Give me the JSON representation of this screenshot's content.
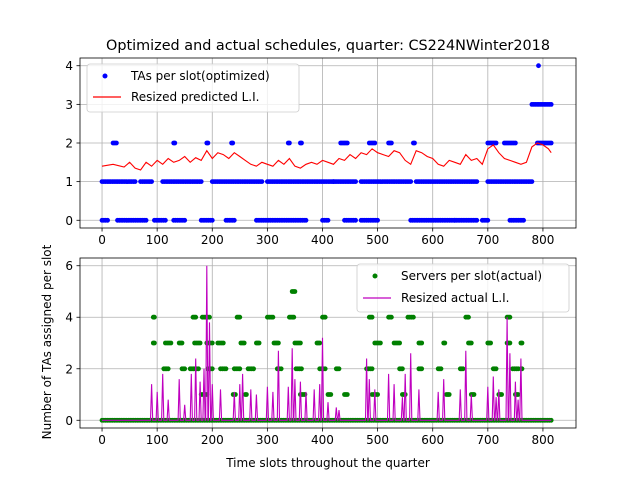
{
  "figure": {
    "title": "Optimized and actual schedules, quarter: CS224NWinter2018",
    "shared_ylabel": "Number of TAs assigned per slot",
    "shared_xlabel": "Time slots throughout the quarter",
    "background": "#ffffff",
    "grid_color": "#b0b0b0"
  },
  "chart_data": [
    {
      "type": "scatter",
      "title": "Optimized and actual schedules, quarter: CS224NWinter2018",
      "xlim": [
        -40,
        860
      ],
      "ylim": [
        -0.2,
        4.2
      ],
      "x_ticks": [
        0,
        100,
        200,
        300,
        400,
        500,
        600,
        700,
        800
      ],
      "y_ticks": [
        0,
        1,
        2,
        3,
        4
      ],
      "grid": true,
      "legend_position": "upper-left",
      "series": [
        {
          "name": "TAs per slot(optimized)",
          "kind": "points",
          "color": "#0000ff",
          "segments": [
            {
              "x0": 0,
              "x1": 10,
              "y": 0
            },
            {
              "x0": 0,
              "x1": 60,
              "y": 1
            },
            {
              "x0": 20,
              "x1": 26,
              "y": 2
            },
            {
              "x0": 28,
              "x1": 80,
              "y": 0
            },
            {
              "x0": 70,
              "x1": 90,
              "y": 1
            },
            {
              "x0": 95,
              "x1": 115,
              "y": 0
            },
            {
              "x0": 110,
              "x1": 180,
              "y": 1
            },
            {
              "x0": 130,
              "x1": 132,
              "y": 2
            },
            {
              "x0": 130,
              "x1": 150,
              "y": 0
            },
            {
              "x0": 190,
              "x1": 192,
              "y": 2
            },
            {
              "x0": 180,
              "x1": 200,
              "y": 0
            },
            {
              "x0": 200,
              "x1": 290,
              "y": 1
            },
            {
              "x0": 225,
              "x1": 240,
              "y": 0
            },
            {
              "x0": 235,
              "x1": 237,
              "y": 2
            },
            {
              "x0": 280,
              "x1": 370,
              "y": 0
            },
            {
              "x0": 300,
              "x1": 420,
              "y": 1
            },
            {
              "x0": 338,
              "x1": 340,
              "y": 2
            },
            {
              "x0": 360,
              "x1": 362,
              "y": 2
            },
            {
              "x0": 400,
              "x1": 410,
              "y": 0
            },
            {
              "x0": 420,
              "x1": 460,
              "y": 1
            },
            {
              "x0": 433,
              "x1": 445,
              "y": 2
            },
            {
              "x0": 440,
              "x1": 460,
              "y": 0
            },
            {
              "x0": 470,
              "x1": 560,
              "y": 1
            },
            {
              "x0": 485,
              "x1": 495,
              "y": 2
            },
            {
              "x0": 520,
              "x1": 525,
              "y": 2
            },
            {
              "x0": 470,
              "x1": 500,
              "y": 0
            },
            {
              "x0": 565,
              "x1": 567,
              "y": 2
            },
            {
              "x0": 560,
              "x1": 640,
              "y": 0
            },
            {
              "x0": 570,
              "x1": 680,
              "y": 1
            },
            {
              "x0": 640,
              "x1": 680,
              "y": 0
            },
            {
              "x0": 700,
              "x1": 715,
              "y": 2
            },
            {
              "x0": 690,
              "x1": 700,
              "y": 0
            },
            {
              "x0": 700,
              "x1": 780,
              "y": 1
            },
            {
              "x0": 730,
              "x1": 750,
              "y": 2
            },
            {
              "x0": 740,
              "x1": 765,
              "y": 0
            },
            {
              "x0": 780,
              "x1": 815,
              "y": 3
            },
            {
              "x0": 790,
              "x1": 815,
              "y": 2
            },
            {
              "x0": 792,
              "x1": 792,
              "y": 4
            }
          ]
        },
        {
          "name": "Resized predicted L.I.",
          "kind": "line",
          "color": "#ff0000",
          "x": [
            0,
            20,
            40,
            50,
            60,
            70,
            80,
            90,
            100,
            110,
            120,
            130,
            140,
            150,
            160,
            170,
            180,
            190,
            200,
            210,
            220,
            230,
            240,
            250,
            260,
            270,
            280,
            290,
            300,
            310,
            320,
            330,
            340,
            350,
            360,
            370,
            380,
            390,
            400,
            410,
            420,
            430,
            440,
            450,
            460,
            470,
            480,
            490,
            500,
            510,
            520,
            530,
            540,
            550,
            560,
            570,
            580,
            590,
            600,
            610,
            620,
            630,
            640,
            650,
            660,
            670,
            680,
            690,
            700,
            710,
            720,
            730,
            740,
            750,
            760,
            770,
            780,
            790,
            800,
            810,
            815
          ],
          "y": [
            1.4,
            1.45,
            1.38,
            1.5,
            1.35,
            1.3,
            1.5,
            1.4,
            1.55,
            1.45,
            1.6,
            1.5,
            1.55,
            1.65,
            1.5,
            1.62,
            1.55,
            1.8,
            1.6,
            1.75,
            1.7,
            1.6,
            1.75,
            1.65,
            1.55,
            1.45,
            1.4,
            1.5,
            1.45,
            1.4,
            1.55,
            1.45,
            1.6,
            1.4,
            1.35,
            1.45,
            1.5,
            1.45,
            1.55,
            1.5,
            1.45,
            1.6,
            1.55,
            1.7,
            1.6,
            1.75,
            1.7,
            1.85,
            1.75,
            1.7,
            1.65,
            1.8,
            1.75,
            1.55,
            1.45,
            1.8,
            1.75,
            1.65,
            1.6,
            1.45,
            1.4,
            1.55,
            1.5,
            1.45,
            1.7,
            1.55,
            1.6,
            1.45,
            1.85,
            1.95,
            1.75,
            1.6,
            1.55,
            1.5,
            1.45,
            1.5,
            1.9,
            2.0,
            1.95,
            1.85,
            1.75
          ]
        }
      ]
    },
    {
      "type": "scatter",
      "xlim": [
        -40,
        860
      ],
      "ylim": [
        -0.3,
        6.3
      ],
      "x_ticks": [
        0,
        100,
        200,
        300,
        400,
        500,
        600,
        700,
        800
      ],
      "y_ticks": [
        0,
        2,
        4,
        6
      ],
      "grid": true,
      "legend_position": "upper-right",
      "series": [
        {
          "name": "Servers per slot(actual)",
          "kind": "points",
          "color": "#008000",
          "segments": [
            {
              "x0": 0,
              "x1": 815,
              "y": 0
            },
            {
              "x0": 93,
              "x1": 95,
              "y": 4
            },
            {
              "x0": 93,
              "x1": 95,
              "y": 3
            },
            {
              "x0": 115,
              "x1": 125,
              "y": 3
            },
            {
              "x0": 112,
              "x1": 120,
              "y": 2
            },
            {
              "x0": 140,
              "x1": 145,
              "y": 3
            },
            {
              "x0": 145,
              "x1": 150,
              "y": 2
            },
            {
              "x0": 165,
              "x1": 170,
              "y": 4
            },
            {
              "x0": 168,
              "x1": 178,
              "y": 3
            },
            {
              "x0": 160,
              "x1": 175,
              "y": 2
            },
            {
              "x0": 182,
              "x1": 195,
              "y": 4
            },
            {
              "x0": 190,
              "x1": 200,
              "y": 3
            },
            {
              "x0": 192,
              "x1": 200,
              "y": 2
            },
            {
              "x0": 180,
              "x1": 190,
              "y": 1
            },
            {
              "x0": 210,
              "x1": 220,
              "y": 3
            },
            {
              "x0": 215,
              "x1": 225,
              "y": 2
            },
            {
              "x0": 245,
              "x1": 250,
              "y": 4
            },
            {
              "x0": 252,
              "x1": 258,
              "y": 3
            },
            {
              "x0": 240,
              "x1": 250,
              "y": 2
            },
            {
              "x0": 238,
              "x1": 242,
              "y": 1
            },
            {
              "x0": 280,
              "x1": 285,
              "y": 3
            },
            {
              "x0": 265,
              "x1": 275,
              "y": 2
            },
            {
              "x0": 260,
              "x1": 262,
              "y": 1
            },
            {
              "x0": 300,
              "x1": 310,
              "y": 4
            },
            {
              "x0": 312,
              "x1": 320,
              "y": 3
            },
            {
              "x0": 318,
              "x1": 325,
              "y": 2
            },
            {
              "x0": 345,
              "x1": 350,
              "y": 5
            },
            {
              "x0": 340,
              "x1": 348,
              "y": 4
            },
            {
              "x0": 350,
              "x1": 360,
              "y": 3
            },
            {
              "x0": 352,
              "x1": 362,
              "y": 2
            },
            {
              "x0": 360,
              "x1": 368,
              "y": 1
            },
            {
              "x0": 390,
              "x1": 395,
              "y": 3
            },
            {
              "x0": 395,
              "x1": 405,
              "y": 2
            },
            {
              "x0": 400,
              "x1": 405,
              "y": 4
            },
            {
              "x0": 410,
              "x1": 415,
              "y": 1
            },
            {
              "x0": 425,
              "x1": 430,
              "y": 2
            },
            {
              "x0": 440,
              "x1": 445,
              "y": 1
            },
            {
              "x0": 485,
              "x1": 490,
              "y": 4
            },
            {
              "x0": 495,
              "x1": 505,
              "y": 3
            },
            {
              "x0": 480,
              "x1": 490,
              "y": 2
            },
            {
              "x0": 490,
              "x1": 500,
              "y": 1
            },
            {
              "x0": 520,
              "x1": 525,
              "y": 4
            },
            {
              "x0": 530,
              "x1": 540,
              "y": 3
            },
            {
              "x0": 540,
              "x1": 545,
              "y": 2
            },
            {
              "x0": 545,
              "x1": 550,
              "y": 1
            },
            {
              "x0": 555,
              "x1": 565,
              "y": 4
            },
            {
              "x0": 575,
              "x1": 580,
              "y": 3
            },
            {
              "x0": 575,
              "x1": 580,
              "y": 2
            },
            {
              "x0": 620,
              "x1": 622,
              "y": 3
            },
            {
              "x0": 610,
              "x1": 615,
              "y": 2
            },
            {
              "x0": 625,
              "x1": 630,
              "y": 1
            },
            {
              "x0": 660,
              "x1": 665,
              "y": 4
            },
            {
              "x0": 665,
              "x1": 670,
              "y": 3
            },
            {
              "x0": 650,
              "x1": 655,
              "y": 2
            },
            {
              "x0": 670,
              "x1": 675,
              "y": 1
            },
            {
              "x0": 700,
              "x1": 705,
              "y": 3
            },
            {
              "x0": 710,
              "x1": 715,
              "y": 2
            },
            {
              "x0": 720,
              "x1": 725,
              "y": 1
            },
            {
              "x0": 735,
              "x1": 740,
              "y": 4
            },
            {
              "x0": 735,
              "x1": 740,
              "y": 3
            },
            {
              "x0": 745,
              "x1": 755,
              "y": 2
            },
            {
              "x0": 750,
              "x1": 755,
              "y": 1
            },
            {
              "x0": 760,
              "x1": 762,
              "y": 3
            },
            {
              "x0": 760,
              "x1": 762,
              "y": 2
            }
          ]
        },
        {
          "name": "Resized actual L.I.",
          "kind": "spikes",
          "color": "#bf00bf",
          "baseline": 0,
          "spikes": [
            {
              "x": 90,
              "y": 1.4
            },
            {
              "x": 100,
              "y": 1.1
            },
            {
              "x": 110,
              "y": 1.8
            },
            {
              "x": 120,
              "y": 0.8
            },
            {
              "x": 140,
              "y": 1.6
            },
            {
              "x": 150,
              "y": 0.6
            },
            {
              "x": 162,
              "y": 1.8
            },
            {
              "x": 170,
              "y": 2.4
            },
            {
              "x": 178,
              "y": 1.5
            },
            {
              "x": 185,
              "y": 2.0
            },
            {
              "x": 190,
              "y": 6.0
            },
            {
              "x": 195,
              "y": 3.8
            },
            {
              "x": 200,
              "y": 1.4
            },
            {
              "x": 215,
              "y": 1.2
            },
            {
              "x": 240,
              "y": 1.1
            },
            {
              "x": 250,
              "y": 1.4
            },
            {
              "x": 255,
              "y": 1.8
            },
            {
              "x": 270,
              "y": 1.2
            },
            {
              "x": 280,
              "y": 1.0
            },
            {
              "x": 300,
              "y": 1.3
            },
            {
              "x": 310,
              "y": 1.1
            },
            {
              "x": 320,
              "y": 2.7
            },
            {
              "x": 338,
              "y": 1.3
            },
            {
              "x": 345,
              "y": 2.8
            },
            {
              "x": 350,
              "y": 1.6
            },
            {
              "x": 360,
              "y": 1.5
            },
            {
              "x": 370,
              "y": 1.1
            },
            {
              "x": 385,
              "y": 1.2
            },
            {
              "x": 395,
              "y": 1.4
            },
            {
              "x": 400,
              "y": 3.2
            },
            {
              "x": 410,
              "y": 0.7
            },
            {
              "x": 425,
              "y": 0.5
            },
            {
              "x": 430,
              "y": 0.4
            },
            {
              "x": 480,
              "y": 2.4
            },
            {
              "x": 485,
              "y": 1.6
            },
            {
              "x": 495,
              "y": 1.2
            },
            {
              "x": 520,
              "y": 1.8
            },
            {
              "x": 530,
              "y": 1.4
            },
            {
              "x": 545,
              "y": 0.9
            },
            {
              "x": 550,
              "y": 1.8
            },
            {
              "x": 560,
              "y": 2.6
            },
            {
              "x": 575,
              "y": 1.2
            },
            {
              "x": 610,
              "y": 1.1
            },
            {
              "x": 620,
              "y": 1.6
            },
            {
              "x": 650,
              "y": 1.2
            },
            {
              "x": 660,
              "y": 2.7
            },
            {
              "x": 670,
              "y": 1.0
            },
            {
              "x": 700,
              "y": 1.3
            },
            {
              "x": 710,
              "y": 1.7
            },
            {
              "x": 715,
              "y": 0.9
            },
            {
              "x": 720,
              "y": 1.2
            },
            {
              "x": 735,
              "y": 4.0
            },
            {
              "x": 740,
              "y": 2.6
            },
            {
              "x": 750,
              "y": 1.5
            },
            {
              "x": 755,
              "y": 0.8
            },
            {
              "x": 760,
              "y": 2.4
            }
          ]
        }
      ]
    }
  ]
}
